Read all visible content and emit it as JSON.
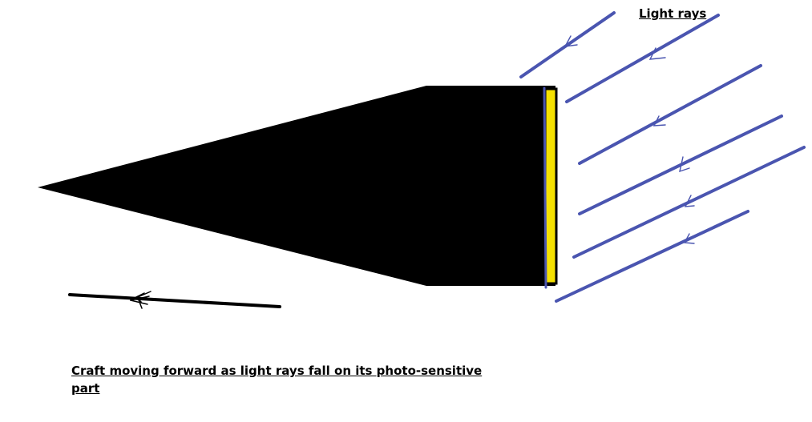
{
  "labels": {
    "light_rays": "Light rays",
    "caption": "Craft moving forward as light rays fall on its photo-sensitive part"
  },
  "colors": {
    "background": "#ffffff",
    "craft_body": "#000000",
    "photo_sensitive_panel": "#f5e100",
    "light_ray": "#4a55b0",
    "motion_line": "#000000"
  },
  "diagram": {
    "light_ray_count": 6,
    "motion_direction": "left"
  }
}
